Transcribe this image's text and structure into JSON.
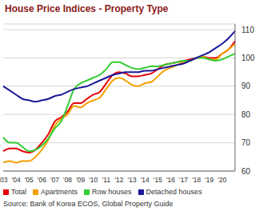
{
  "chart_data": {
    "type": "line",
    "title": "House Price Indices - Property Type",
    "source": "Source: Bank of Korea ECOS, Global Property Guide",
    "categories": [
      "'03",
      null,
      "'04",
      null,
      "'05",
      null,
      "'06",
      null,
      "'07",
      null,
      "'08",
      null,
      "'09",
      null,
      "'10",
      null,
      "'11",
      null,
      "'12",
      null,
      "'13",
      null,
      "'14",
      null,
      "'15",
      null,
      "'16",
      null,
      "'17",
      null,
      "'18",
      null,
      "'19",
      null,
      "'20",
      null,
      null
    ],
    "series": [
      {
        "name": "Total",
        "color": "#e8000b",
        "values": [
          67,
          68,
          68,
          67,
          66.5,
          67.5,
          70,
          73,
          77.5,
          79,
          81,
          84,
          84,
          85.5,
          87,
          88,
          91,
          94,
          95,
          94.5,
          93.5,
          93.5,
          94,
          94.5,
          96,
          97.5,
          98,
          98.5,
          99,
          99.5,
          100,
          100.5,
          100,
          100,
          101.5,
          103,
          106
        ]
      },
      {
        "name": "Apartments",
        "color": "#f5a000",
        "values": [
          63,
          63.5,
          63,
          63.5,
          63.5,
          65,
          67.5,
          71,
          76,
          78.5,
          80,
          83,
          82.5,
          84,
          85,
          86,
          89,
          92,
          93,
          92,
          90.5,
          90,
          91,
          91.5,
          93.5,
          95.5,
          96.5,
          97.5,
          98.5,
          99,
          100,
          100.5,
          99.5,
          99.5,
          101.5,
          103,
          105
        ]
      },
      {
        "name": "Row houses",
        "color": "#33cc33",
        "values": [
          72,
          70,
          70,
          68.5,
          67,
          67.5,
          69,
          71.5,
          75,
          77.5,
          83,
          89,
          91,
          92,
          93,
          94,
          96,
          98.5,
          98.5,
          97.5,
          96.5,
          96,
          96.5,
          97,
          97,
          97.5,
          98,
          98.5,
          99,
          99,
          100,
          100,
          99.5,
          99,
          99.5,
          100.5,
          101.5
        ]
      },
      {
        "name": "Detached houses",
        "color": "#1a1a99",
        "values": [
          90,
          88.5,
          87,
          85.5,
          85,
          84.5,
          85,
          85.5,
          86.5,
          87,
          88,
          89,
          89.5,
          90,
          91,
          92,
          93,
          94,
          94.5,
          95,
          95,
          95,
          95.5,
          95.5,
          96,
          96.5,
          97,
          97.5,
          98,
          99,
          100,
          101,
          102,
          103.5,
          105,
          107,
          109.5
        ]
      }
    ],
    "ylim": [
      60,
      112
    ],
    "yticks": [
      60,
      70,
      80,
      90,
      100,
      110
    ],
    "grid": true,
    "legend": "bottom"
  }
}
